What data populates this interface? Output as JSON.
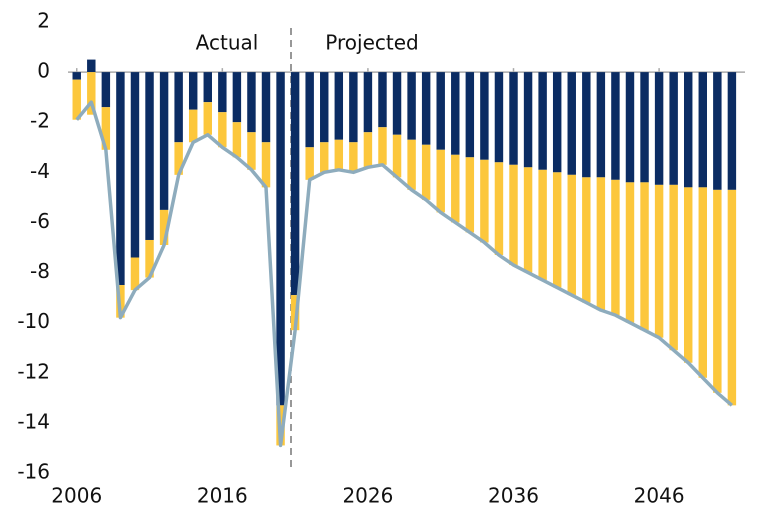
{
  "chart_data": {
    "type": "bar",
    "stacked": true,
    "x": [
      2006,
      2007,
      2008,
      2009,
      2010,
      2011,
      2012,
      2013,
      2014,
      2015,
      2016,
      2017,
      2018,
      2019,
      2020,
      2021,
      2022,
      2023,
      2024,
      2025,
      2026,
      2027,
      2028,
      2029,
      2030,
      2031,
      2032,
      2033,
      2034,
      2035,
      2036,
      2037,
      2038,
      2039,
      2040,
      2041,
      2042,
      2043,
      2044,
      2045,
      2046,
      2047,
      2048,
      2049,
      2050,
      2051
    ],
    "series": [
      {
        "color": "#0b2c63",
        "values": [
          -0.3,
          0.5,
          -1.4,
          -8.5,
          -7.4,
          -6.7,
          -5.5,
          -2.8,
          -1.5,
          -1.2,
          -1.6,
          -2.0,
          -2.4,
          -2.8,
          -13.3,
          -8.9,
          -3.0,
          -2.8,
          -2.7,
          -2.8,
          -2.4,
          -2.2,
          -2.5,
          -2.7,
          -2.9,
          -3.1,
          -3.3,
          -3.4,
          -3.5,
          -3.6,
          -3.7,
          -3.8,
          -3.9,
          -4.0,
          -4.1,
          -4.2,
          -4.2,
          -4.3,
          -4.4,
          -4.4,
          -4.5,
          -4.5,
          -4.6,
          -4.6,
          -4.7,
          -4.7
        ]
      },
      {
        "color": "#fcc73c",
        "values": [
          -1.6,
          -1.7,
          -1.7,
          -1.3,
          -1.3,
          -1.5,
          -1.4,
          -1.3,
          -1.3,
          -1.3,
          -1.4,
          -1.4,
          -1.5,
          -1.8,
          -1.6,
          -1.4,
          -1.3,
          -1.2,
          -1.2,
          -1.2,
          -1.4,
          -1.5,
          -1.7,
          -2.0,
          -2.2,
          -2.5,
          -2.7,
          -3.0,
          -3.3,
          -3.7,
          -4.0,
          -4.2,
          -4.4,
          -4.6,
          -4.8,
          -5.0,
          -5.3,
          -5.4,
          -5.6,
          -5.9,
          -6.1,
          -6.6,
          -7.0,
          -7.6,
          -8.1,
          -8.6
        ]
      },
      {
        "type": "line",
        "color": "#8eacbd",
        "values": [
          -1.9,
          -1.2,
          -3.1,
          -9.8,
          -8.7,
          -8.2,
          -6.9,
          -4.1,
          -2.8,
          -2.5,
          -3.0,
          -3.4,
          -3.9,
          -4.6,
          -14.9,
          -10.3,
          -4.3,
          -4.0,
          -3.9,
          -4.0,
          -3.8,
          -3.7,
          -4.2,
          -4.7,
          -5.1,
          -5.6,
          -6.0,
          -6.4,
          -6.8,
          -7.3,
          -7.7,
          -8.0,
          -8.3,
          -8.6,
          -8.9,
          -9.2,
          -9.5,
          -9.7,
          -10.0,
          -10.3,
          -10.6,
          -11.1,
          -11.6,
          -12.2,
          -12.8,
          -13.3
        ]
      }
    ],
    "annotations": [
      "Actual",
      "Projected"
    ],
    "xlim": [
      2005.4,
      2051.9
    ],
    "xticks": [
      2006,
      2016,
      2026,
      2036,
      2046
    ],
    "ylim": [
      -16,
      2
    ],
    "yticks": [
      2,
      0,
      -2,
      -4,
      -6,
      -8,
      -10,
      -12,
      -14,
      -16
    ],
    "grid": false
  }
}
